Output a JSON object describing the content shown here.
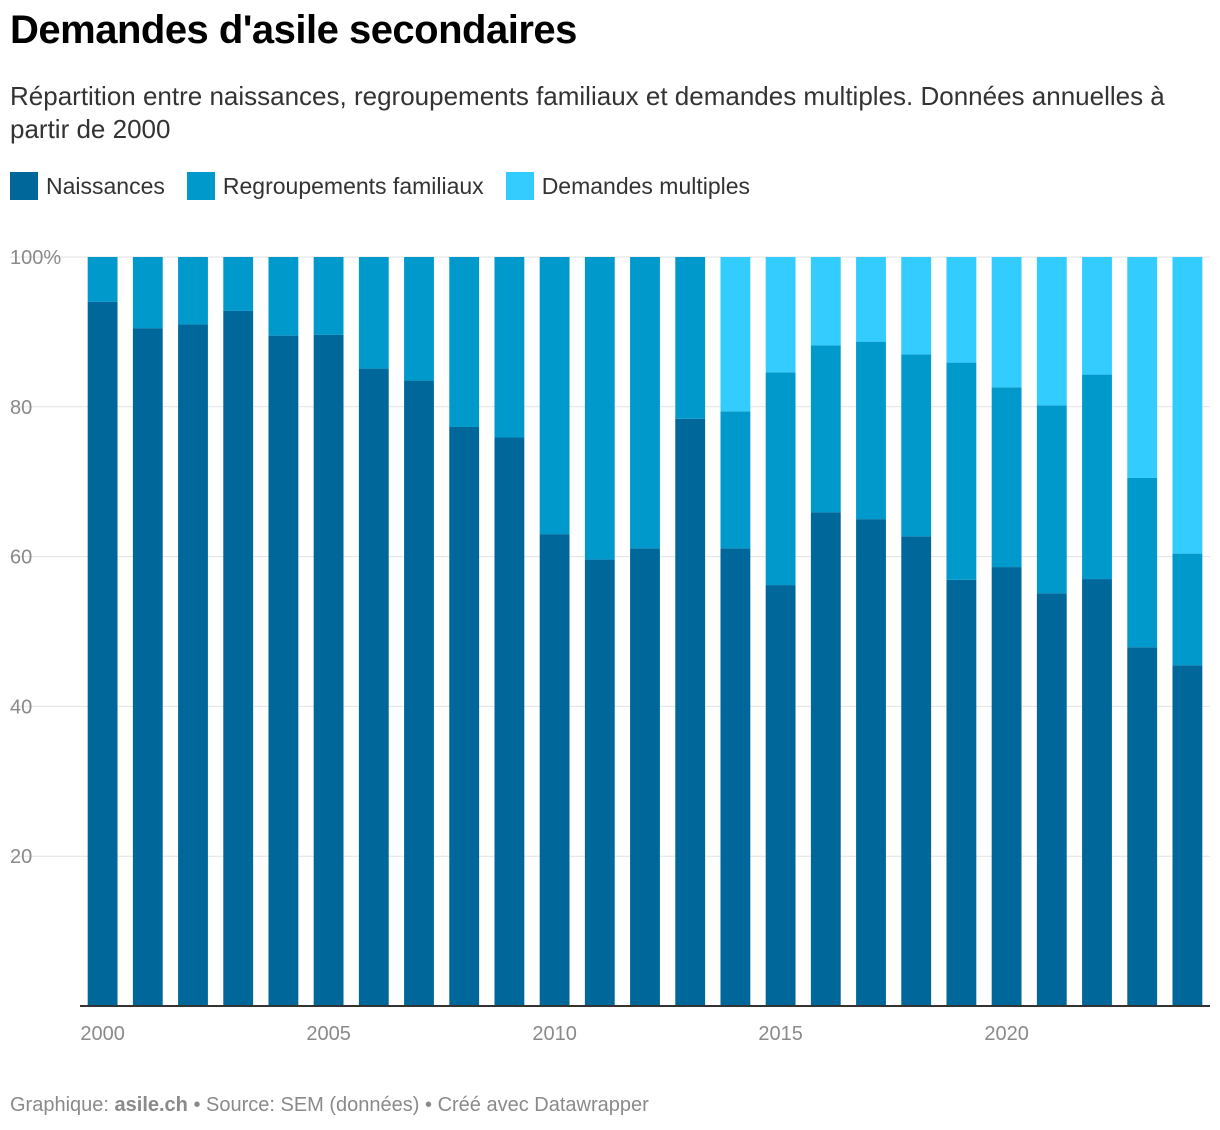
{
  "header": {
    "title": "Demandes d'asile secondaires",
    "subtitle": "Répartition entre naissances, regroupements familiaux et demandes multiples. Données annuelles à partir de 2000"
  },
  "legend": {
    "items": [
      {
        "label": "Naissances",
        "color": "#00679a"
      },
      {
        "label": "Regroupements familiaux",
        "color": "#0099cc"
      },
      {
        "label": "Demandes multiples",
        "color": "#33ccff"
      }
    ]
  },
  "footer": {
    "prefix": "Graphique: ",
    "brand": "asile.ch",
    "rest": " • Source: SEM (données) • Créé avec Datawrapper"
  },
  "chart_data": {
    "type": "bar",
    "stacked": true,
    "title": "Demandes d'asile secondaires",
    "xlabel": "",
    "ylabel": "",
    "ylim": [
      0,
      100
    ],
    "y_ticks": [
      20,
      40,
      60,
      80,
      100
    ],
    "y_tick_labels": [
      "20",
      "40",
      "60",
      "80",
      "100%"
    ],
    "x_tick_labels": [
      "2000",
      "2005",
      "2010",
      "2015",
      "2020"
    ],
    "categories": [
      "2000",
      "2001",
      "2002",
      "2003",
      "2004",
      "2005",
      "2006",
      "2007",
      "2008",
      "2009",
      "2010",
      "2011",
      "2012",
      "2013",
      "2014",
      "2015",
      "2016",
      "2017",
      "2018",
      "2019",
      "2020",
      "2021",
      "2022",
      "2023",
      "2024"
    ],
    "series": [
      {
        "name": "Naissances",
        "color": "#00679a",
        "values": [
          94.0,
          90.5,
          91.0,
          92.8,
          89.5,
          89.6,
          85.1,
          83.5,
          77.3,
          75.9,
          63.0,
          59.6,
          61.1,
          78.4,
          61.1,
          56.2,
          65.9,
          65.0,
          62.7,
          56.9,
          58.6,
          55.1,
          57.0,
          47.9,
          45.5
        ]
      },
      {
        "name": "Regroupements familiaux",
        "color": "#0099cc",
        "values": [
          6.0,
          9.5,
          9.0,
          7.2,
          10.5,
          10.4,
          14.9,
          16.5,
          22.7,
          24.1,
          37.0,
          40.4,
          38.9,
          21.6,
          18.3,
          28.4,
          22.3,
          23.7,
          24.3,
          29.0,
          24.0,
          25.1,
          27.3,
          22.6,
          14.9
        ]
      },
      {
        "name": "Demandes multiples",
        "color": "#33ccff",
        "values": [
          0,
          0,
          0,
          0,
          0,
          0,
          0,
          0,
          0,
          0,
          0,
          0,
          0,
          0,
          20.6,
          15.4,
          11.8,
          11.3,
          13.0,
          14.1,
          17.4,
          19.8,
          15.7,
          29.5,
          39.6
        ]
      }
    ]
  }
}
